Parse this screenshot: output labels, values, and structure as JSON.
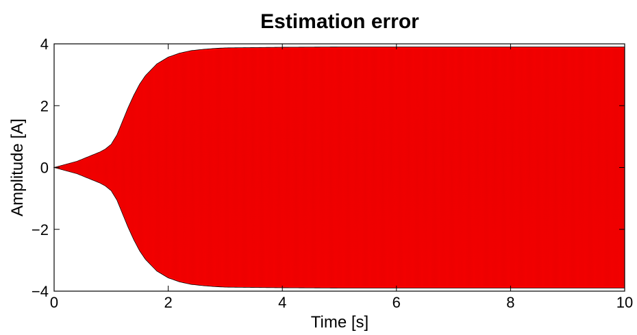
{
  "chart_data": {
    "type": "line",
    "title": "Estimation error",
    "xlabel": "Time [s]",
    "ylabel": "Amplitude [A]",
    "xlim": [
      0,
      10
    ],
    "ylim": [
      -4,
      4
    ],
    "xticks": [
      0,
      2,
      4,
      6,
      8,
      10
    ],
    "yticks": [
      -4,
      -2,
      0,
      2,
      4
    ],
    "xtick_labels": [
      "0",
      "2",
      "4",
      "6",
      "8",
      "10"
    ],
    "ytick_labels": [
      "−4",
      "−2",
      "0",
      "2",
      "4"
    ],
    "grid": false,
    "series": [
      {
        "color": "#ff0000",
        "style": "oscillation",
        "envelope_t": [
          0,
          0.2,
          0.4,
          0.6,
          0.8,
          0.9,
          1.0,
          1.1,
          1.2,
          1.3,
          1.4,
          1.5,
          1.6,
          1.8,
          2.0,
          2.2,
          2.4,
          2.6,
          2.8,
          3.0,
          3.5,
          4.0,
          5.0,
          6.0,
          7.0,
          8.0,
          9.0,
          10.0
        ],
        "envelope_amplitude": [
          0.0,
          0.1,
          0.2,
          0.35,
          0.5,
          0.6,
          0.75,
          1.05,
          1.5,
          1.95,
          2.35,
          2.7,
          2.97,
          3.35,
          3.57,
          3.7,
          3.78,
          3.82,
          3.85,
          3.87,
          3.88,
          3.89,
          3.9,
          3.9,
          3.9,
          3.9,
          3.9,
          3.9
        ]
      }
    ]
  }
}
